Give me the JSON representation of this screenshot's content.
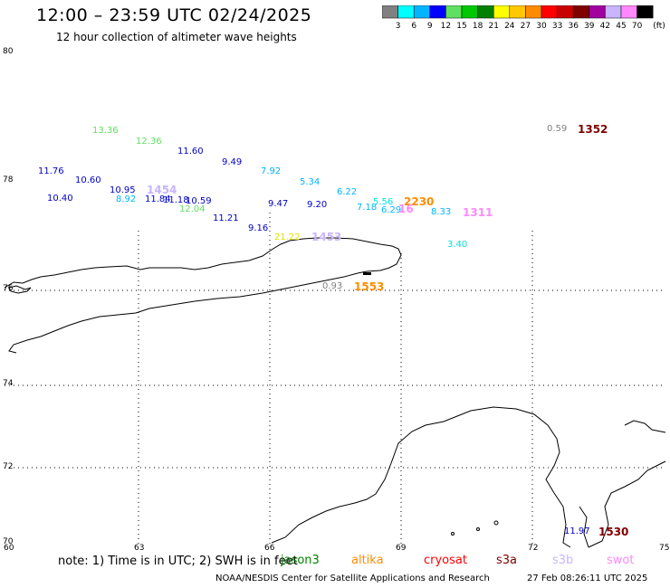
{
  "title": "12:00 – 23:59 UTC 02/24/2025",
  "subtitle": "12 hour collection of altimeter wave heights",
  "colorbar": {
    "unit": "(ft)",
    "ticks": [
      "3",
      "6",
      "9",
      "12",
      "15",
      "18",
      "21",
      "24",
      "27",
      "30",
      "33",
      "36",
      "39",
      "42",
      "45",
      "70"
    ],
    "colors": [
      "#808080",
      "#00ffff",
      "#00b4ff",
      "#0000ff",
      "#60e060",
      "#00c800",
      "#008000",
      "#ffff00",
      "#ffc800",
      "#ff8c00",
      "#ff0000",
      "#c80000",
      "#800000",
      "#a000a0",
      "#c8b4ff",
      "#ff88ff",
      "#000000"
    ]
  },
  "axes": {
    "lat_labels": [
      "80",
      "78",
      "76",
      "74",
      "72",
      "70"
    ],
    "lon_labels": [
      "60",
      "63",
      "66",
      "69",
      "72",
      "75"
    ]
  },
  "points": [
    {
      "text": "13.36",
      "color": "#60e060"
    },
    {
      "text": "12.36",
      "color": "#60e060"
    },
    {
      "text": "11.60",
      "color": "#0000c8"
    },
    {
      "text": "9.49",
      "color": "#0000c8"
    },
    {
      "text": "7.92",
      "color": "#00b4ff"
    },
    {
      "text": "5.34",
      "color": "#00b4ff"
    },
    {
      "text": "6.22",
      "color": "#00b4ff"
    },
    {
      "text": "11.76",
      "color": "#0000c8"
    },
    {
      "text": "10.60",
      "color": "#0000c8"
    },
    {
      "text": "10.40",
      "color": "#0000c8"
    },
    {
      "text": "10.95",
      "color": "#0000c8"
    },
    {
      "text": "8.92",
      "color": "#00b4ff"
    },
    {
      "text": "11.84",
      "color": "#0000c8"
    },
    {
      "text": "11.18",
      "color": "#0000c8"
    },
    {
      "text": "10.59",
      "color": "#0000c8"
    },
    {
      "text": "12.04",
      "color": "#60e060"
    },
    {
      "text": "11.21",
      "color": "#0000c8"
    },
    {
      "text": "9.16",
      "color": "#0000c8"
    },
    {
      "text": "9.47",
      "color": "#0000c8"
    },
    {
      "text": "9.20",
      "color": "#0000c8"
    },
    {
      "text": "7.18",
      "color": "#00b4ff"
    },
    {
      "text": "5.56",
      "color": "#00e0e0"
    },
    {
      "text": "6.29",
      "color": "#00b4ff"
    },
    {
      "text": "8.33",
      "color": "#00b4ff"
    },
    {
      "text": "3.40",
      "color": "#00e0e0"
    },
    {
      "text": "21.22",
      "color": "#e0e000"
    },
    {
      "text": "0.93",
      "color": "#808080"
    },
    {
      "text": "0.59",
      "color": "#808080"
    },
    {
      "text": "11.97",
      "color": "#0000c8"
    }
  ],
  "times": [
    {
      "text": "1352",
      "color": "#800000"
    },
    {
      "text": "1454",
      "color": "#c8b4ff"
    },
    {
      "text": "2230",
      "color": "#ff8c00"
    },
    {
      "text": "1311",
      "color": "#ff88ff"
    },
    {
      "text": "1453",
      "color": "#c8b4ff"
    },
    {
      "text": "1553",
      "color": "#ff8c00"
    },
    {
      "text": "1530",
      "color": "#800000"
    },
    {
      "text": "16",
      "color": "#ff88ff"
    }
  ],
  "note": "note: 1) Time is in UTC; 2) SWH is in feet",
  "legend": [
    {
      "text": "jason3",
      "color": "#008000"
    },
    {
      "text": "altika",
      "color": "#ff8c00"
    },
    {
      "text": "cryosat",
      "color": "#ff0000"
    },
    {
      "text": "s3a",
      "color": "#800000"
    },
    {
      "text": "s3b",
      "color": "#c8b4ff"
    },
    {
      "text": "swot",
      "color": "#ff88ff"
    }
  ],
  "credit": "NOAA/NESDIS Center for Satellite Applications and Research",
  "timestamp": "27 Feb 08:26:11 UTC 2025"
}
